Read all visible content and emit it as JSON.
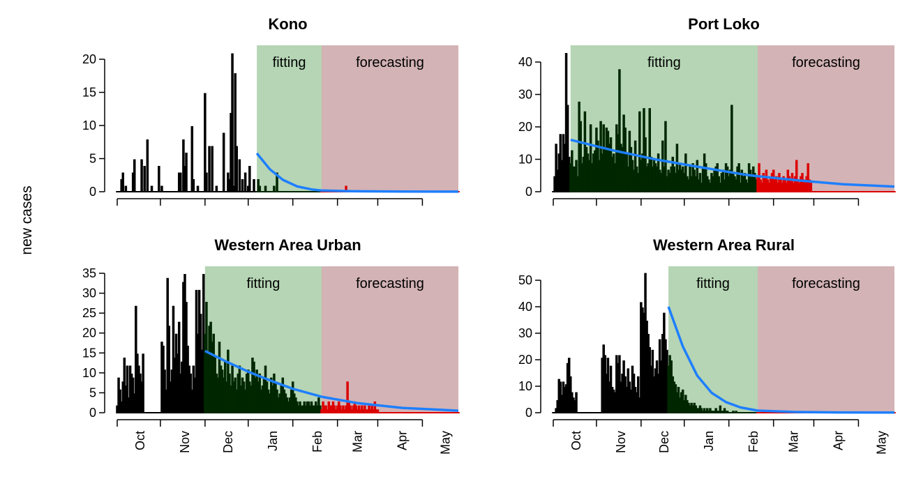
{
  "ylabel": "new cases",
  "colors": {
    "observed": "#000000",
    "fitting_bars": "#002700",
    "forecast_bars": "#dd0000",
    "fit_curve": "#1e7fff",
    "fitting_bg": "#b5d5b4",
    "forecasting_bg": "#d3b3b5"
  },
  "x_axis": {
    "months": [
      "Oct",
      "Nov",
      "Dec",
      "Jan",
      "Feb",
      "Mar",
      "Apr",
      "May"
    ],
    "tick_dates": [
      "2014-09-15",
      "2014-10-15",
      "2014-11-15",
      "2014-12-15",
      "2015-01-15",
      "2015-02-15",
      "2015-03-15",
      "2015-04-15"
    ],
    "label_dates": [
      "2014-10-01",
      "2014-11-01",
      "2014-12-01",
      "2015-01-01",
      "2015-02-01",
      "2015-03-01",
      "2015-04-01",
      "2015-05-01"
    ]
  },
  "chart_data": [
    {
      "type": "bar",
      "title": "Kono",
      "xlim": [
        "2014-09-15",
        "2015-05-10"
      ],
      "ylim": [
        0,
        20
      ],
      "yticks": [
        0,
        5,
        10,
        15,
        20
      ],
      "fitting": {
        "label": "fitting",
        "start": "2014-12-21",
        "end": "2015-02-04"
      },
      "forecasting": {
        "label": "forecasting",
        "start": "2015-02-04",
        "end": "2015-05-10"
      },
      "observed_start": "2014-09-15",
      "observed": [
        0,
        0,
        0,
        2,
        3,
        0,
        1,
        0,
        0,
        0,
        0,
        3,
        5,
        0,
        0,
        0,
        0,
        5,
        0,
        4,
        0,
        8,
        0,
        0,
        1,
        0,
        0,
        0,
        0,
        4,
        0,
        1,
        0,
        0,
        0,
        0,
        0,
        0,
        0,
        0,
        0,
        0,
        0,
        3,
        3,
        0,
        8,
        4,
        6,
        0,
        0,
        0,
        10,
        2,
        0,
        0,
        1,
        0,
        0,
        0,
        0,
        15,
        3,
        0,
        7,
        0,
        7,
        0,
        0,
        1,
        0,
        0,
        0,
        0,
        9,
        0,
        0,
        3,
        2,
        12,
        21,
        1,
        18,
        7,
        0,
        5,
        0,
        2,
        0,
        3,
        0,
        1,
        4,
        0,
        0,
        2,
        0,
        0,
        2,
        1,
        0,
        0,
        0,
        1,
        0,
        0,
        0,
        0,
        0,
        1,
        0,
        3,
        0,
        0,
        0,
        0,
        0,
        0,
        0,
        0,
        0,
        0,
        0,
        0,
        0,
        0,
        0,
        0,
        0,
        0,
        0,
        0,
        0,
        0,
        0,
        0,
        0,
        0,
        0,
        0,
        0,
        0,
        0,
        0,
        0,
        0,
        0,
        0,
        0,
        0,
        0,
        0,
        0,
        0,
        0,
        0,
        0,
        0,
        0,
        1,
        0,
        0,
        0,
        0,
        0,
        0,
        0,
        0,
        0,
        0,
        0,
        0,
        0,
        0,
        0,
        0,
        0,
        0,
        0,
        0,
        0,
        0,
        0,
        0,
        0,
        0,
        0,
        0,
        0,
        0,
        0,
        0,
        0,
        0,
        0,
        0,
        0,
        0,
        0,
        0,
        0,
        0,
        0,
        0,
        0,
        0,
        0,
        0,
        0,
        0,
        0,
        0,
        0,
        0,
        0,
        0,
        0,
        0,
        0,
        0,
        0,
        0,
        0,
        0,
        0,
        0,
        0,
        0,
        0,
        0,
        0,
        0,
        0,
        0,
        0,
        0,
        0,
        0,
        0,
        0,
        0,
        0,
        0,
        0
      ],
      "fit_curve": [
        [
          "2014-12-21",
          5.8
        ],
        [
          "2014-12-30",
          3.4
        ],
        [
          "2015-01-08",
          1.8
        ],
        [
          "2015-01-18",
          0.8
        ],
        [
          "2015-01-28",
          0.35
        ],
        [
          "2015-02-04",
          0.18
        ],
        [
          "2015-03-01",
          0.06
        ],
        [
          "2015-04-01",
          0.02
        ],
        [
          "2015-05-10",
          0.01
        ]
      ]
    },
    {
      "type": "bar",
      "title": "Port Loko",
      "xlim": [
        "2014-09-15",
        "2015-05-10"
      ],
      "ylim": [
        0,
        40
      ],
      "yticks": [
        0,
        10,
        20,
        30,
        40
      ],
      "fitting": {
        "label": "fitting",
        "start": "2014-09-27",
        "end": "2015-02-04"
      },
      "forecasting": {
        "label": "forecasting",
        "start": "2015-02-04",
        "end": "2015-05-10"
      },
      "observed_start": "2014-09-15",
      "observed": [
        0,
        5,
        15,
        7,
        12,
        18,
        10,
        18,
        15,
        43,
        27,
        11,
        9,
        13,
        8,
        8,
        10,
        5,
        28,
        22,
        9,
        11,
        25,
        14,
        12,
        10,
        21,
        9,
        12,
        13,
        20,
        16,
        10,
        22,
        12,
        21,
        14,
        20,
        19,
        15,
        17,
        11,
        12,
        9,
        21,
        18,
        38,
        15,
        14,
        24,
        20,
        12,
        8,
        19,
        14,
        10,
        7,
        16,
        8,
        6,
        25,
        10,
        12,
        26,
        17,
        8,
        9,
        26,
        11,
        8,
        10,
        9,
        8,
        12,
        7,
        6,
        16,
        8,
        22,
        5,
        7,
        6,
        8,
        11,
        8,
        6,
        15,
        7,
        9,
        7,
        8,
        6,
        12,
        5,
        4,
        8,
        5,
        9,
        7,
        5,
        10,
        4,
        6,
        3,
        8,
        12,
        9,
        5,
        4,
        3,
        6,
        5,
        7,
        8,
        9,
        5,
        3,
        6,
        7,
        4,
        9,
        8,
        5,
        7,
        27,
        6,
        5,
        4,
        8,
        9,
        3,
        7,
        5,
        6,
        4,
        3,
        9,
        7,
        5,
        8,
        6,
        4,
        5,
        9,
        4,
        3,
        6,
        5,
        7,
        4,
        3,
        5,
        6,
        7,
        4,
        5,
        3,
        6,
        4,
        3,
        5,
        4,
        3,
        7,
        5,
        4,
        6,
        3,
        5,
        10,
        4,
        3,
        5,
        6,
        4,
        3,
        5,
        9,
        4,
        3,
        0,
        0,
        0,
        0,
        0,
        0,
        0,
        0,
        0,
        0,
        0,
        0,
        0,
        0,
        0,
        0,
        0,
        0,
        0,
        0,
        0,
        0,
        0,
        0,
        0,
        0,
        0,
        0,
        0,
        0,
        0,
        0,
        0,
        0,
        0,
        0,
        0,
        0,
        0,
        0,
        0,
        0,
        0,
        0,
        0,
        0,
        0,
        0,
        0,
        0,
        0,
        0,
        0,
        0,
        0,
        0,
        0,
        0,
        0,
        0,
        0,
        0,
        0,
        0,
        0,
        0,
        0,
        0,
        0,
        0,
        0,
        0,
        0,
        0,
        0,
        0,
        0
      ],
      "fit_curve": [
        [
          "2014-09-27",
          16
        ],
        [
          "2014-10-27",
          12.7
        ],
        [
          "2014-11-27",
          9.8
        ],
        [
          "2014-12-27",
          7.5
        ],
        [
          "2015-01-27",
          5.2
        ],
        [
          "2015-02-04",
          4.8
        ],
        [
          "2015-03-04",
          3.5
        ],
        [
          "2015-04-04",
          2.3
        ],
        [
          "2015-05-10",
          1.6
        ]
      ]
    },
    {
      "type": "bar",
      "title": "Western Area Urban",
      "xlim": [
        "2014-09-15",
        "2015-05-10"
      ],
      "ylim": [
        0,
        35
      ],
      "yticks": [
        0,
        5,
        10,
        15,
        20,
        25,
        30,
        35
      ],
      "fitting": {
        "label": "fitting",
        "start": "2014-11-15",
        "end": "2015-02-04"
      },
      "forecasting": {
        "label": "forecasting",
        "start": "2015-02-04",
        "end": "2015-05-10"
      },
      "observed_start": "2014-09-15",
      "observed": [
        2,
        9,
        6,
        3,
        8,
        14,
        7,
        12,
        4,
        12,
        10,
        9,
        5,
        27,
        15,
        12,
        10,
        8,
        15,
        0,
        0,
        0,
        0,
        0,
        0,
        0,
        0,
        0,
        0,
        0,
        0,
        18,
        17,
        11,
        6,
        34,
        22,
        8,
        11,
        27,
        14,
        20,
        15,
        23,
        10,
        13,
        33,
        35,
        28,
        17,
        12,
        10,
        6,
        12,
        9,
        31,
        20,
        31,
        25,
        16,
        35,
        20,
        28,
        15,
        22,
        23,
        18,
        20,
        14,
        10,
        9,
        18,
        12,
        11,
        9,
        13,
        8,
        16,
        10,
        7,
        12,
        8,
        9,
        6,
        10,
        12,
        7,
        9,
        8,
        6,
        10,
        11,
        8,
        7,
        14,
        13,
        9,
        11,
        8,
        10,
        6,
        7,
        9,
        12,
        8,
        6,
        5,
        9,
        7,
        10,
        8,
        6,
        4,
        5,
        7,
        9,
        6,
        5,
        4,
        3,
        4,
        6,
        8,
        5,
        4,
        3,
        2,
        3,
        2,
        2,
        3,
        2,
        3,
        3,
        2,
        3,
        2,
        2,
        3,
        2,
        4,
        2,
        1,
        3,
        2,
        2,
        1,
        3,
        2,
        2,
        3,
        2,
        1,
        2,
        3,
        2,
        1,
        2,
        1,
        2,
        8,
        3,
        2,
        1,
        2,
        3,
        2,
        1,
        2,
        1,
        2,
        1,
        2,
        1,
        1,
        2,
        1,
        2,
        1,
        3,
        1,
        1,
        0,
        0,
        0,
        0,
        0,
        0,
        0,
        0,
        0,
        0,
        0,
        0,
        0,
        0,
        0,
        0,
        0,
        0,
        0,
        0,
        0,
        0,
        0,
        0,
        0,
        0,
        0,
        0,
        0,
        0,
        0,
        0,
        0,
        0,
        0,
        0,
        0,
        0,
        0,
        0,
        0,
        0,
        0,
        0,
        0,
        0,
        0,
        0,
        0,
        0,
        0,
        0,
        0,
        0,
        0,
        0,
        0,
        0,
        0,
        0,
        0,
        0,
        0,
        0,
        0,
        0
      ],
      "fit_curve": [
        [
          "2014-11-15",
          15.5
        ],
        [
          "2014-11-30",
          12.8
        ],
        [
          "2014-12-15",
          10.3
        ],
        [
          "2014-12-31",
          8.0
        ],
        [
          "2015-01-15",
          6.0
        ],
        [
          "2015-02-04",
          4.0
        ],
        [
          "2015-03-01",
          2.4
        ],
        [
          "2015-04-01",
          1.2
        ],
        [
          "2015-05-10",
          0.5
        ]
      ]
    },
    {
      "type": "bar",
      "title": "Western Area Rural",
      "xlim": [
        "2014-09-15",
        "2015-05-10"
      ],
      "ylim": [
        0,
        50
      ],
      "yticks": [
        0,
        10,
        20,
        30,
        40,
        50
      ],
      "fitting": {
        "label": "fitting",
        "start": "2014-12-04",
        "end": "2015-02-04"
      },
      "forecasting": {
        "label": "forecasting",
        "start": "2015-02-04",
        "end": "2015-05-10"
      },
      "observed_start": "2014-09-15",
      "observed": [
        0,
        0,
        2,
        5,
        13,
        12,
        7,
        12,
        10,
        11,
        19,
        21,
        14,
        8,
        6,
        5,
        8,
        0,
        0,
        0,
        0,
        0,
        0,
        0,
        0,
        0,
        0,
        0,
        0,
        0,
        0,
        0,
        0,
        0,
        21,
        26,
        22,
        15,
        21,
        12,
        18,
        10,
        9,
        8,
        22,
        19,
        22,
        12,
        15,
        20,
        14,
        10,
        17,
        12,
        9,
        18,
        15,
        10,
        8,
        14,
        6,
        42,
        40,
        38,
        53,
        35,
        30,
        25,
        18,
        24,
        14,
        17,
        20,
        15,
        28,
        20,
        30,
        38,
        28,
        24,
        18,
        22,
        20,
        14,
        12,
        11,
        8,
        10,
        6,
        8,
        9,
        5,
        7,
        5,
        4,
        3,
        4,
        3,
        4,
        3,
        2,
        2,
        3,
        2,
        1,
        2,
        1,
        2,
        1,
        2,
        1,
        1,
        1,
        2,
        1,
        1,
        3,
        1,
        1,
        2,
        1,
        1,
        0,
        0,
        0,
        1,
        0,
        1,
        0,
        0,
        0,
        0,
        0,
        0,
        0,
        0,
        0,
        0,
        0,
        0,
        0,
        0,
        0,
        0,
        0,
        0,
        0,
        0,
        0,
        0,
        0,
        0,
        0,
        0,
        0,
        0,
        0,
        0,
        0,
        0,
        0,
        0,
        0,
        0,
        0,
        0,
        0,
        0,
        0,
        0,
        0,
        0,
        0,
        0,
        0,
        0,
        0,
        0,
        0,
        0,
        0,
        0,
        0,
        0,
        0,
        0,
        0,
        0,
        0,
        0,
        0,
        0,
        0,
        0,
        0,
        0,
        0,
        0,
        0,
        0,
        0,
        0,
        0,
        0,
        0,
        0,
        0,
        0,
        0,
        0,
        0,
        0,
        0,
        0,
        0,
        0,
        0,
        0,
        0,
        0,
        0,
        0,
        0,
        0,
        0,
        0,
        0,
        0,
        0,
        0,
        0,
        0,
        0,
        0,
        0,
        0,
        0,
        0,
        0
      ],
      "fit_curve": [
        [
          "2014-12-04",
          40
        ],
        [
          "2014-12-14",
          25
        ],
        [
          "2014-12-24",
          14
        ],
        [
          "2015-01-03",
          7.5
        ],
        [
          "2015-01-13",
          4
        ],
        [
          "2015-01-23",
          2
        ],
        [
          "2015-02-04",
          0.8
        ],
        [
          "2015-03-01",
          0.3
        ],
        [
          "2015-04-01",
          0.1
        ],
        [
          "2015-05-10",
          0.05
        ]
      ]
    }
  ]
}
